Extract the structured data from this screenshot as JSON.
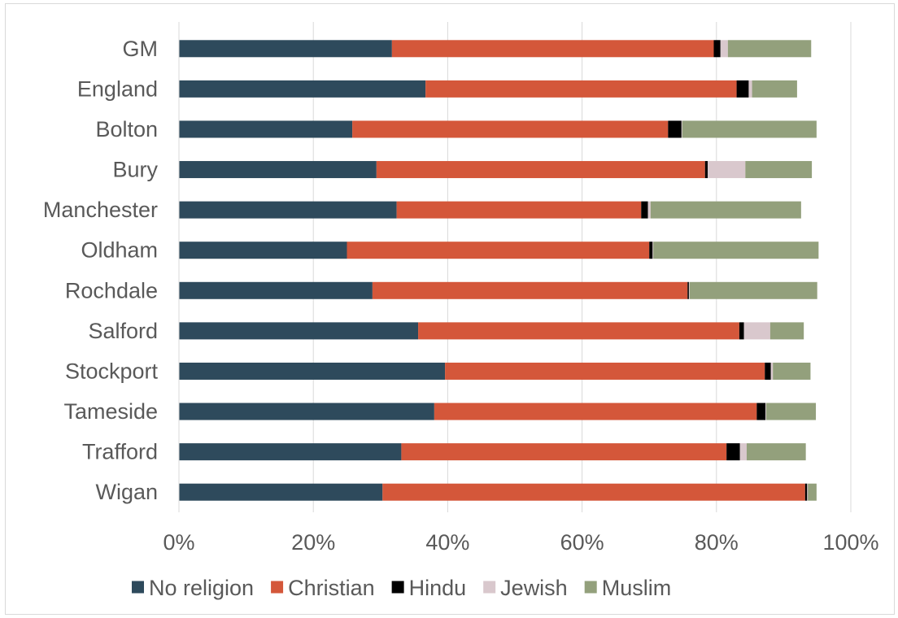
{
  "chart_data": {
    "type": "bar",
    "orientation": "horizontal",
    "stacked": true,
    "categories": [
      "GM",
      "England",
      "Bolton",
      "Bury",
      "Manchester",
      "Oldham",
      "Rochdale",
      "Salford",
      "Stockport",
      "Tameside",
      "Trafford",
      "Wigan"
    ],
    "series": [
      {
        "name": "No religion",
        "color": "#2e4a5c",
        "values": [
          31.7,
          36.7,
          25.8,
          29.4,
          32.4,
          25.0,
          28.8,
          35.6,
          39.6,
          38.0,
          33.1,
          30.3
        ]
      },
      {
        "name": "Christian",
        "color": "#d4573a",
        "values": [
          47.9,
          46.3,
          47.0,
          48.9,
          36.4,
          45.0,
          46.9,
          47.8,
          47.6,
          48.0,
          48.4,
          62.9
        ]
      },
      {
        "name": "Hindu",
        "color": "#000000",
        "values": [
          1.0,
          1.8,
          2.0,
          0.4,
          1.0,
          0.5,
          0.2,
          0.7,
          0.9,
          1.3,
          2.0,
          0.3
        ]
      },
      {
        "name": "Jewish",
        "color": "#d9c8cd",
        "values": [
          1.1,
          0.5,
          0.1,
          5.6,
          0.4,
          0.1,
          0.1,
          3.9,
          0.3,
          0.1,
          1.0,
          0.1
        ]
      },
      {
        "name": "Muslim",
        "color": "#93a07c",
        "values": [
          12.4,
          6.7,
          20.0,
          9.9,
          22.4,
          24.6,
          19.0,
          5.0,
          5.6,
          7.4,
          8.8,
          1.3
        ]
      }
    ],
    "xlim": [
      0,
      100
    ],
    "xticks": [
      "0%",
      "20%",
      "40%",
      "60%",
      "80%",
      "100%"
    ],
    "grid": true,
    "legend_position": "bottom"
  }
}
